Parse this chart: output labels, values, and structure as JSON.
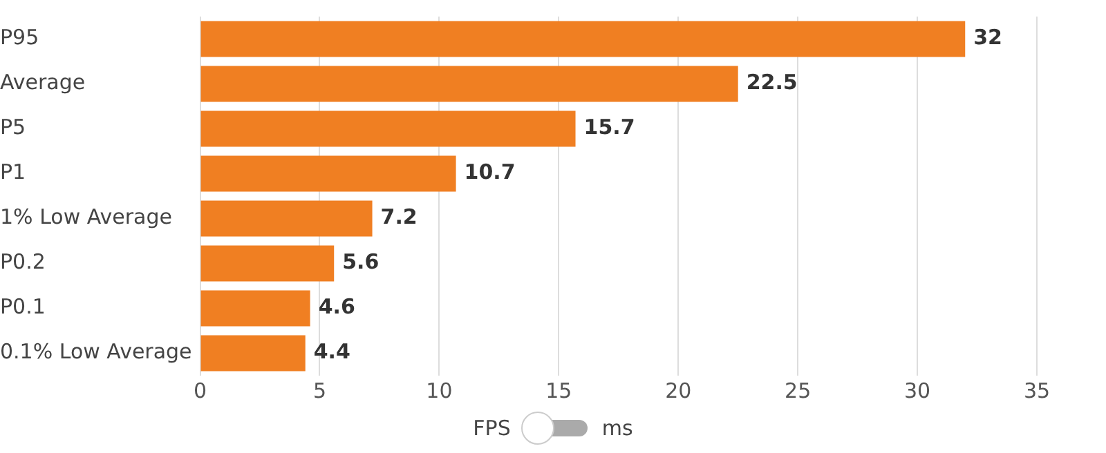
{
  "chart_data": {
    "type": "bar",
    "orientation": "horizontal",
    "categories": [
      "P95",
      "Average",
      "P5",
      "P1",
      "1% Low Average",
      "P0.2",
      "P0.1",
      "0.1% Low Average"
    ],
    "values": [
      32,
      22.5,
      15.7,
      10.7,
      7.2,
      5.6,
      4.6,
      4.4
    ],
    "color": "#f07f22",
    "xlim": [
      0,
      35
    ],
    "xticks": [
      0,
      5,
      10,
      15,
      20,
      25,
      30,
      35
    ],
    "grid": "x",
    "legend": false,
    "data_labels": true,
    "annotations": [
      "FPS",
      "ms"
    ]
  }
}
